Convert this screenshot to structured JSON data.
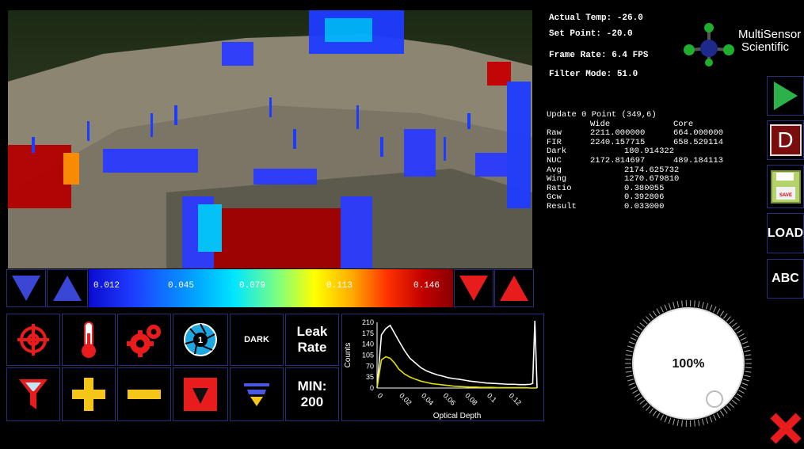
{
  "status": {
    "actual_temp": "Actual Temp: -26.0",
    "set_point": "Set Point: -20.0",
    "frame_rate": "Frame Rate: 6.4 FPS",
    "filter_mode": "Filter Mode: 51.0"
  },
  "brand": {
    "line1": "MultiSensor",
    "line2": "Scientific"
  },
  "readout": {
    "title": "Update 0 Point (349,6)",
    "header": {
      "wide": "Wide",
      "core": "Core"
    },
    "rows": [
      {
        "label": "Raw",
        "wide": "2211.000000",
        "core": "664.000000"
      },
      {
        "label": "FIR",
        "wide": "2240.157715",
        "core": "658.529114"
      },
      {
        "label": "Dark",
        "value": "180.914322"
      },
      {
        "label": "NUC",
        "wide": "2172.814697",
        "core": "489.184113"
      },
      {
        "label": "Avg",
        "value": "2174.625732"
      },
      {
        "label": "Wing",
        "value": "1270.679810"
      },
      {
        "label": "Ratio",
        "value": "0.380055"
      },
      {
        "label": "Gcw",
        "value": "0.392806"
      },
      {
        "label": "Result",
        "value": "0.033000"
      }
    ]
  },
  "colorscale": {
    "labels": [
      "0.012",
      "0.045",
      "0.079",
      "0.113",
      "0.146"
    ]
  },
  "tools": {
    "dark_label": "DARK",
    "leak_rate_label": "Leak\nRate",
    "min_label": "MIN:\n200",
    "aperture_number": "1"
  },
  "side": {
    "load_label": "LOAD",
    "abc_label": "ABC",
    "save_icon_text": "SAVE",
    "d_label": "D"
  },
  "dial": {
    "value": "100%"
  },
  "chart_data": {
    "type": "line",
    "xlabel": "Optical Depth",
    "ylabel": "Counts",
    "xlim": [
      0,
      0.146
    ],
    "ylim": [
      0,
      210
    ],
    "yticks": [
      "0",
      "35",
      "70",
      "105",
      "140",
      "175",
      "210"
    ],
    "xticks": [
      "0",
      "0.02",
      "0.04",
      "0.06",
      "0.08",
      "0.1",
      "0.12"
    ],
    "grid": false,
    "series": [
      {
        "color": "#ffffff",
        "x": [
          0.0,
          0.004,
          0.008,
          0.012,
          0.016,
          0.02,
          0.025,
          0.03,
          0.035,
          0.04,
          0.045,
          0.05,
          0.055,
          0.06,
          0.065,
          0.07,
          0.075,
          0.08,
          0.085,
          0.09,
          0.095,
          0.1,
          0.105,
          0.11,
          0.115,
          0.12,
          0.125,
          0.13,
          0.135,
          0.14,
          0.142,
          0.144,
          0.146
        ],
        "y": [
          0,
          170,
          190,
          200,
          175,
          150,
          120,
          95,
          80,
          65,
          55,
          48,
          42,
          38,
          33,
          30,
          28,
          25,
          22,
          20,
          18,
          16,
          15,
          14,
          13,
          12,
          12,
          11,
          11,
          12,
          15,
          215,
          0
        ]
      },
      {
        "color": "#e3df00",
        "x": [
          0.0,
          0.004,
          0.008,
          0.012,
          0.016,
          0.02,
          0.025,
          0.03,
          0.035,
          0.04,
          0.045,
          0.05,
          0.055,
          0.06,
          0.065,
          0.07,
          0.075,
          0.08,
          0.085,
          0.09,
          0.095,
          0.1,
          0.105,
          0.11,
          0.115,
          0.12,
          0.125,
          0.13,
          0.135,
          0.14,
          0.146
        ],
        "y": [
          0,
          90,
          100,
          95,
          80,
          60,
          45,
          35,
          28,
          22,
          18,
          14,
          12,
          10,
          8,
          6,
          5,
          4,
          3,
          3,
          2,
          2,
          2,
          1,
          1,
          1,
          1,
          1,
          1,
          0,
          0
        ]
      }
    ]
  }
}
